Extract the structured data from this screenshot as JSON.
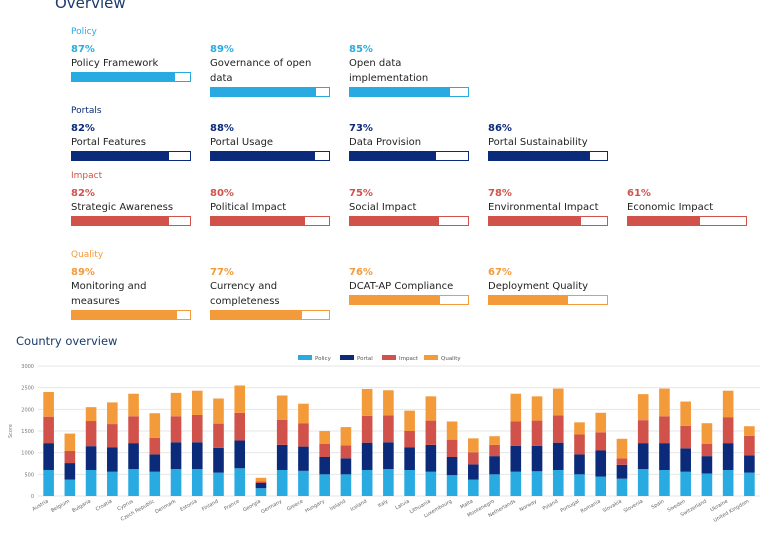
{
  "page": {
    "title": "Overview",
    "country_title": "Country overview"
  },
  "colors": {
    "policy": "#29abe2",
    "portals": "#0b2a7a",
    "impact": "#d1524a",
    "quality": "#f39a3b"
  },
  "sections": [
    {
      "label": "Policy",
      "color": "#29abe2",
      "metrics": [
        {
          "pct": "87%",
          "value": 0.87,
          "name": "Policy Framework"
        },
        {
          "pct": "89%",
          "value": 0.89,
          "name": "Governance of open data"
        },
        {
          "pct": "85%",
          "value": 0.85,
          "name": "Open data implementation"
        }
      ]
    },
    {
      "label": "Portals",
      "color": "#0b2a7a",
      "metrics": [
        {
          "pct": "82%",
          "value": 0.82,
          "name": "Portal Features"
        },
        {
          "pct": "88%",
          "value": 0.88,
          "name": "Portal Usage"
        },
        {
          "pct": "73%",
          "value": 0.73,
          "name": "Data Provision"
        },
        {
          "pct": "86%",
          "value": 0.86,
          "name": "Portal Sustainability"
        }
      ]
    },
    {
      "label": "Impact",
      "color": "#d1524a",
      "metrics": [
        {
          "pct": "82%",
          "value": 0.82,
          "name": "Strategic Awareness"
        },
        {
          "pct": "80%",
          "value": 0.8,
          "name": "Political Impact"
        },
        {
          "pct": "75%",
          "value": 0.75,
          "name": "Social Impact"
        },
        {
          "pct": "78%",
          "value": 0.78,
          "name": "Environmental Impact"
        },
        {
          "pct": "61%",
          "value": 0.61,
          "name": "Economic Impact"
        }
      ]
    },
    {
      "label": "Quality",
      "color": "#f39a3b",
      "metrics": [
        {
          "pct": "89%",
          "value": 0.89,
          "name": "Monitoring and measures"
        },
        {
          "pct": "77%",
          "value": 0.77,
          "name": "Currency and completeness"
        },
        {
          "pct": "76%",
          "value": 0.76,
          "name": "DCAT-AP Compliance"
        },
        {
          "pct": "67%",
          "value": 0.67,
          "name": "Deployment Quality"
        }
      ]
    }
  ],
  "chart_data": {
    "type": "bar",
    "stacked": true,
    "ylabel": "Score",
    "ylim": [
      0,
      3000
    ],
    "yticks": [
      0,
      500,
      1000,
      1500,
      2000,
      2500,
      3000
    ],
    "grid": true,
    "legend_position": "top-center",
    "categories": [
      "Austria",
      "Belgium",
      "Bulgaria",
      "Croatia",
      "Cyprus",
      "Czech Republic",
      "Denmark",
      "Estonia",
      "Finland",
      "France",
      "Georgia",
      "Germany",
      "Greece",
      "Hungary",
      "Ireland",
      "Iceland",
      "Italy",
      "Latvia",
      "Lithuania",
      "Luxembourg",
      "Malta",
      "Montenegro",
      "Netherlands",
      "Norway",
      "Poland",
      "Portugal",
      "Romania",
      "Slovakia",
      "Slovenia",
      "Spain",
      "Sweden",
      "Switzerland",
      "Ukraine",
      "United Kingdom"
    ],
    "series": [
      {
        "name": "Policy",
        "color": "#29abe2",
        "values": [
          600,
          380,
          600,
          560,
          620,
          560,
          620,
          620,
          540,
          640,
          180,
          600,
          580,
          500,
          500,
          600,
          620,
          600,
          560,
          480,
          380,
          500,
          560,
          570,
          600,
          500,
          450,
          400,
          620,
          600,
          560,
          520,
          600,
          540
        ]
      },
      {
        "name": "Portal",
        "color": "#0b2a7a",
        "values": [
          620,
          380,
          550,
          560,
          600,
          400,
          620,
          620,
          570,
          640,
          120,
          580,
          560,
          400,
          370,
          630,
          620,
          520,
          620,
          420,
          350,
          420,
          600,
          590,
          630,
          460,
          600,
          320,
          600,
          620,
          540,
          400,
          620,
          400
        ]
      },
      {
        "name": "Impact",
        "color": "#d1524a",
        "values": [
          610,
          280,
          580,
          540,
          620,
          380,
          600,
          630,
          560,
          640,
          40,
          580,
          540,
          300,
          300,
          620,
          620,
          380,
          560,
          400,
          280,
          260,
          560,
          580,
          630,
          460,
          420,
          150,
          530,
          620,
          520,
          280,
          600,
          450
        ]
      },
      {
        "name": "Quality",
        "color": "#f39a3b",
        "values": [
          570,
          400,
          320,
          500,
          520,
          570,
          540,
          560,
          580,
          630,
          80,
          560,
          450,
          300,
          420,
          620,
          580,
          470,
          560,
          420,
          320,
          200,
          640,
          560,
          620,
          280,
          450,
          450,
          600,
          640,
          560,
          480,
          610,
          220
        ]
      }
    ]
  }
}
